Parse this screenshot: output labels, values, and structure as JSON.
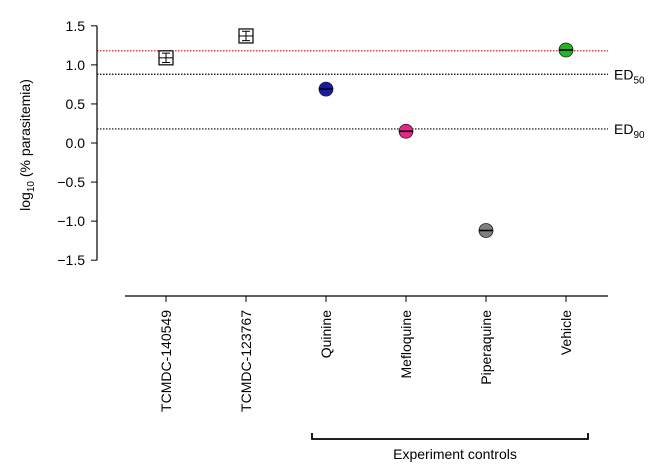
{
  "chart_data": {
    "type": "scatter",
    "ylabel": {
      "base": "log",
      "sub": "10",
      "rest": " (% parasitemia)"
    },
    "ylim": [
      -1.6,
      1.6
    ],
    "yticks": [
      {
        "value": 1.5,
        "label": "1.5"
      },
      {
        "value": 1.0,
        "label": "1.0"
      },
      {
        "value": 0.5,
        "label": "0.5"
      },
      {
        "value": 0.0,
        "label": "0.0"
      },
      {
        "value": -0.5,
        "label": "−0.5"
      },
      {
        "value": -1.0,
        "label": "−1.0"
      },
      {
        "value": -1.5,
        "label": "−1.5"
      }
    ],
    "categories": [
      "TCMDC-140549",
      "TCMDC-123767",
      "Quinine",
      "Mefloquine",
      "Piperaquine",
      "Vehicle"
    ],
    "points": [
      {
        "category": "TCMDC-140549",
        "value": 1.09,
        "error": 0.06,
        "marker": "open-square",
        "color": "#000000"
      },
      {
        "category": "TCMDC-123767",
        "value": 1.37,
        "error": 0.06,
        "marker": "open-square",
        "color": "#000000"
      },
      {
        "category": "Quinine",
        "value": 0.69,
        "error": 0.06,
        "marker": "circle",
        "color": "#1a1aa8"
      },
      {
        "category": "Mefloquine",
        "value": 0.15,
        "error": 0.03,
        "marker": "circle",
        "color": "#e8248a"
      },
      {
        "category": "Piperaquine",
        "value": -1.12,
        "error": 0.03,
        "marker": "circle",
        "color": "#808080"
      },
      {
        "category": "Vehicle",
        "value": 1.19,
        "error": 0.03,
        "marker": "circle",
        "color": "#22b422"
      }
    ],
    "reference_lines": [
      {
        "value": 1.18,
        "color": "#e00000",
        "style": "dotted",
        "label": null
      },
      {
        "value": 0.88,
        "color": "#000000",
        "style": "dotted",
        "label": {
          "base": "ED",
          "sub": "50"
        }
      },
      {
        "value": 0.18,
        "color": "#000000",
        "style": "dotted",
        "label": {
          "base": "ED",
          "sub": "90"
        }
      }
    ],
    "group_bracket": {
      "label": "Experiment controls",
      "from": "Quinine",
      "to": "Vehicle"
    }
  }
}
